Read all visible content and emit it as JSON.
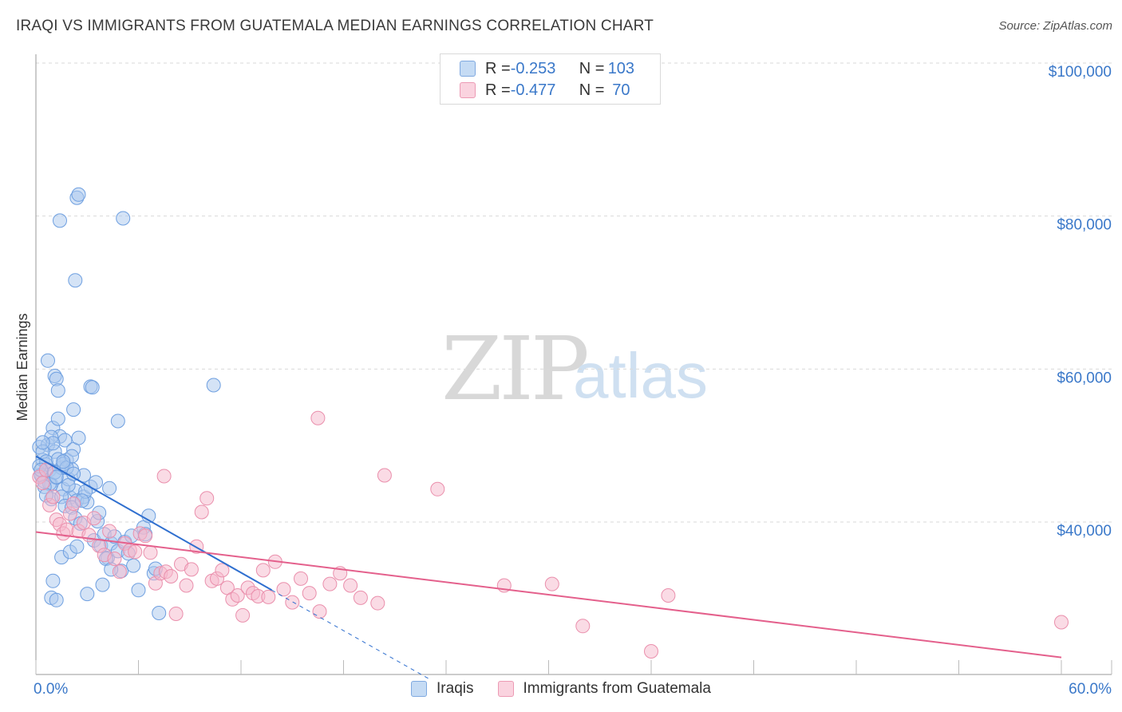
{
  "header": {
    "title": "IRAQI VS IMMIGRANTS FROM GUATEMALA MEDIAN EARNINGS CORRELATION CHART",
    "source": "Source: ZipAtlas.com"
  },
  "legend_box": {
    "rows": [
      {
        "r_label": "R = ",
        "r_value": "-0.253",
        "n_label": "N = ",
        "n_value": "103",
        "color": "#a9c8ee"
      },
      {
        "r_label": "R = ",
        "r_value": "-0.477",
        "n_label": "N = ",
        "n_value": " 70",
        "color": "#f5b8cb"
      }
    ]
  },
  "watermark": {
    "zip": "ZIP",
    "atlas": "atlas"
  },
  "bottom_legend": [
    {
      "label": "Iraqis",
      "color": "#a9c8ee"
    },
    {
      "label": "Immigrants from Guatemala",
      "color": "#f5b8cb"
    }
  ],
  "colors": {
    "blue_fill": "#a9c8ee",
    "blue_line": "#2f6fcf",
    "pink_fill": "#f5b8cb",
    "pink_line": "#e4608c",
    "axis_label": "#3a78c9",
    "grid": "#d9d9d9"
  },
  "chart_data": {
    "type": "scatter",
    "title": "IRAQI VS IMMIGRANTS FROM GUATEMALA MEDIAN EARNINGS CORRELATION CHART",
    "xlabel": "",
    "ylabel": "Median Earnings",
    "xlim": [
      0,
      60
    ],
    "ylim": [
      20000,
      102000
    ],
    "x_tick_labels": [
      "0.0%",
      "60.0%"
    ],
    "y_ticks": [
      40000,
      60000,
      80000,
      100000
    ],
    "y_tick_labels": [
      "$40,000",
      "$60,000",
      "$80,000",
      "$100,000"
    ],
    "grid": true,
    "series": [
      {
        "name": "Iraqis",
        "R": -0.253,
        "N": 103,
        "trend": {
          "x0": 0,
          "y0": 48600,
          "x1": 13.8,
          "y1": 31100,
          "dash_x1": 23,
          "dash_y1": 19500
        },
        "points": [
          [
            0.2,
            49800
          ],
          [
            0.3,
            46200
          ],
          [
            0.4,
            48100
          ],
          [
            0.5,
            45300
          ],
          [
            0.6,
            47500
          ],
          [
            0.7,
            50100
          ],
          [
            0.8,
            46800
          ],
          [
            0.9,
            44900
          ],
          [
            1.0,
            52300
          ],
          [
            1.1,
            49200
          ],
          [
            1.2,
            45800
          ],
          [
            1.3,
            53500
          ],
          [
            1.4,
            51200
          ],
          [
            1.5,
            47100
          ],
          [
            1.6,
            44300
          ],
          [
            1.7,
            50700
          ],
          [
            1.8,
            48100
          ],
          [
            1.9,
            45600
          ],
          [
            2.0,
            43200
          ],
          [
            2.1,
            46900
          ],
          [
            2.2,
            49500
          ],
          [
            2.3,
            44100
          ],
          [
            2.4,
            42800
          ],
          [
            2.5,
            51000
          ],
          [
            0.3,
            46100
          ],
          [
            0.4,
            49200
          ],
          [
            0.6,
            47900
          ],
          [
            0.8,
            45000
          ],
          [
            0.9,
            43000
          ],
          [
            1.1,
            46500
          ],
          [
            1.3,
            48200
          ],
          [
            1.5,
            43300
          ],
          [
            1.7,
            42100
          ],
          [
            1.9,
            44800
          ],
          [
            2.1,
            41900
          ],
          [
            2.3,
            40500
          ],
          [
            2.6,
            39800
          ],
          [
            2.8,
            43300
          ],
          [
            3.0,
            42600
          ],
          [
            3.2,
            44600
          ],
          [
            3.4,
            37600
          ],
          [
            3.6,
            40100
          ],
          [
            3.8,
            36900
          ],
          [
            4.0,
            38400
          ],
          [
            4.2,
            35300
          ],
          [
            4.4,
            37200
          ],
          [
            4.6,
            38100
          ],
          [
            4.8,
            36200
          ],
          [
            5.0,
            33600
          ],
          [
            5.2,
            37400
          ],
          [
            5.4,
            35900
          ],
          [
            5.7,
            34300
          ],
          [
            6.0,
            31100
          ],
          [
            6.3,
            39300
          ],
          [
            6.6,
            40800
          ],
          [
            6.9,
            33300
          ],
          [
            7.2,
            28100
          ],
          [
            0.7,
            61100
          ],
          [
            1.1,
            59100
          ],
          [
            1.2,
            58700
          ],
          [
            1.3,
            57200
          ],
          [
            2.2,
            54700
          ],
          [
            3.2,
            57700
          ],
          [
            3.3,
            57600
          ],
          [
            4.8,
            53200
          ],
          [
            10.4,
            57900
          ],
          [
            1.4,
            79400
          ],
          [
            2.3,
            71600
          ],
          [
            2.4,
            82400
          ],
          [
            2.5,
            82800
          ],
          [
            5.1,
            79700
          ],
          [
            0.9,
            30100
          ],
          [
            1.0,
            32300
          ],
          [
            1.2,
            29800
          ],
          [
            1.5,
            35400
          ],
          [
            2.0,
            36100
          ],
          [
            2.4,
            36800
          ],
          [
            3.0,
            30600
          ],
          [
            3.9,
            31800
          ],
          [
            4.1,
            35200
          ],
          [
            4.4,
            33800
          ],
          [
            0.5,
            44600
          ],
          [
            0.6,
            43500
          ],
          [
            1.6,
            47600
          ],
          [
            1.8,
            47100
          ],
          [
            2.1,
            48600
          ],
          [
            2.8,
            46100
          ],
          [
            3.5,
            45200
          ],
          [
            0.2,
            47300
          ],
          [
            0.3,
            46800
          ],
          [
            0.9,
            51100
          ],
          [
            1.0,
            50300
          ],
          [
            1.6,
            47900
          ],
          [
            2.2,
            46300
          ],
          [
            2.9,
            44000
          ],
          [
            3.7,
            41200
          ],
          [
            4.3,
            44400
          ],
          [
            5.6,
            38200
          ],
          [
            6.4,
            38400
          ],
          [
            7.0,
            33900
          ],
          [
            0.4,
            50400
          ],
          [
            1.2,
            45900
          ],
          [
            2.7,
            42800
          ]
        ]
      },
      {
        "name": "Immigrants from Guatemala",
        "R": -0.477,
        "N": 70,
        "trend": {
          "x0": 0,
          "y0": 38700,
          "x1": 60,
          "y1": 22300
        },
        "points": [
          [
            0.2,
            45900
          ],
          [
            0.4,
            45100
          ],
          [
            0.6,
            46800
          ],
          [
            0.8,
            42200
          ],
          [
            1.0,
            43300
          ],
          [
            1.2,
            40300
          ],
          [
            1.4,
            39700
          ],
          [
            1.6,
            38500
          ],
          [
            1.8,
            39000
          ],
          [
            2.0,
            41100
          ],
          [
            2.2,
            42400
          ],
          [
            2.5,
            38800
          ],
          [
            2.8,
            39900
          ],
          [
            3.1,
            38300
          ],
          [
            3.4,
            40500
          ],
          [
            3.7,
            36900
          ],
          [
            4.0,
            35700
          ],
          [
            4.3,
            38800
          ],
          [
            4.6,
            35200
          ],
          [
            4.9,
            33500
          ],
          [
            5.2,
            37200
          ],
          [
            5.5,
            36300
          ],
          [
            5.8,
            36100
          ],
          [
            6.1,
            38500
          ],
          [
            6.4,
            38200
          ],
          [
            6.7,
            36000
          ],
          [
            7.0,
            32000
          ],
          [
            7.3,
            33300
          ],
          [
            7.6,
            33500
          ],
          [
            7.9,
            32900
          ],
          [
            8.2,
            28000
          ],
          [
            8.5,
            34500
          ],
          [
            8.8,
            31700
          ],
          [
            9.1,
            33800
          ],
          [
            9.4,
            36800
          ],
          [
            9.7,
            41300
          ],
          [
            10.0,
            43100
          ],
          [
            10.3,
            32300
          ],
          [
            10.6,
            32600
          ],
          [
            10.9,
            33700
          ],
          [
            11.2,
            31400
          ],
          [
            11.5,
            29900
          ],
          [
            11.8,
            30400
          ],
          [
            12.1,
            27800
          ],
          [
            12.4,
            31400
          ],
          [
            12.7,
            30700
          ],
          [
            13.0,
            30300
          ],
          [
            13.3,
            33700
          ],
          [
            13.6,
            30200
          ],
          [
            14.0,
            34800
          ],
          [
            14.5,
            31200
          ],
          [
            15.0,
            29500
          ],
          [
            15.5,
            32600
          ],
          [
            16.0,
            30700
          ],
          [
            16.6,
            28300
          ],
          [
            17.2,
            31900
          ],
          [
            17.8,
            33300
          ],
          [
            18.4,
            31700
          ],
          [
            19.0,
            30100
          ],
          [
            7.5,
            46000
          ],
          [
            16.5,
            53600
          ],
          [
            20.4,
            46100
          ],
          [
            23.5,
            44300
          ],
          [
            20.0,
            29400
          ],
          [
            27.4,
            31700
          ],
          [
            30.2,
            31900
          ],
          [
            32.0,
            26400
          ],
          [
            37.0,
            30400
          ],
          [
            36.0,
            23100
          ],
          [
            60.0,
            26900
          ]
        ]
      }
    ]
  }
}
